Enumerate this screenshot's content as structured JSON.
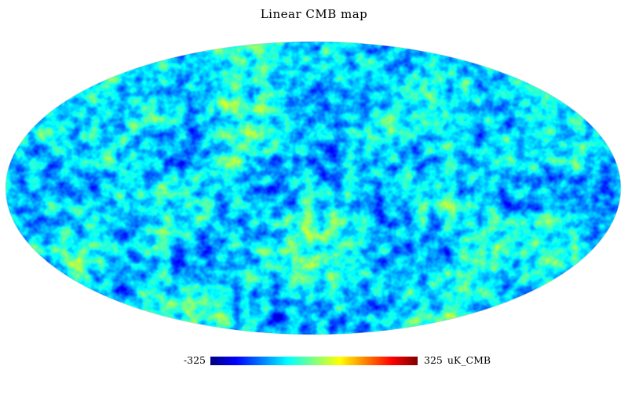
{
  "title": "Linear CMB map",
  "projection": "Mollweide",
  "colormap": {
    "name": "jet",
    "stops": [
      "#00007f",
      "#0000ff",
      "#007fff",
      "#00ffff",
      "#7fff7f",
      "#ffff00",
      "#ff7f00",
      "#ff0000",
      "#7f0000"
    ]
  },
  "colorbar": {
    "min_label": "-325",
    "max_label": "325",
    "unit": "uK_CMB"
  },
  "map_data": {
    "quantity": "CMB temperature anisotropy",
    "min": -325,
    "max": 325,
    "unit": "uK_CMB"
  }
}
